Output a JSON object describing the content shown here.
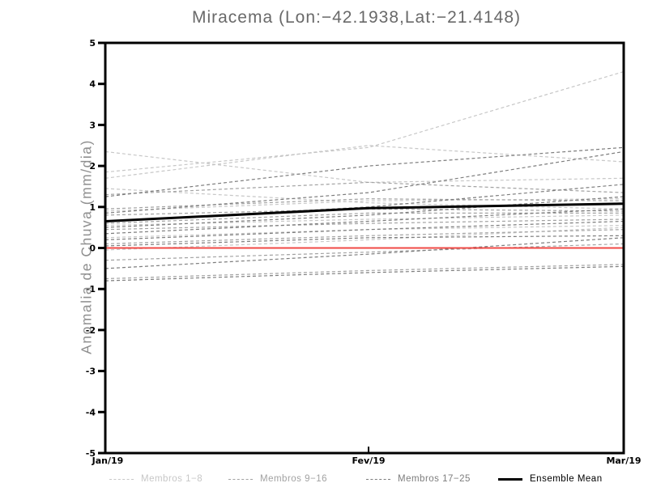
{
  "title": "Miracema (Lon:−42.1938,Lat:−21.4148)",
  "chart_data": {
    "type": "line",
    "title": "Miracema (Lon:−42.1938,Lat:−21.4148)",
    "xlabel": "",
    "ylabel": "Anomalia de Chuva (mm/dia)",
    "grid": false,
    "legend_position": "bottom",
    "x_axis": {
      "labels": [
        "Jan/19",
        "Fev/19",
        "Mar/19"
      ]
    },
    "y_axis": {
      "min": -5,
      "max": 5,
      "step": 1
    },
    "zero_line": {
      "value": 0,
      "color": "#f04945"
    },
    "series": [
      {
        "name": "Membros 1−8",
        "color": "#c7c7c7",
        "style": "dashed",
        "members": [
          [
            2.35,
            1.6,
            1.7
          ],
          [
            1.85,
            2.45,
            4.3
          ],
          [
            1.7,
            2.5,
            2.1
          ],
          [
            1.45,
            1.1,
            0.95
          ],
          [
            0.9,
            1.15,
            1.2
          ],
          [
            0.55,
            0.7,
            0.8
          ],
          [
            0.25,
            0.45,
            0.55
          ],
          [
            -0.05,
            0.2,
            0.5
          ]
        ]
      },
      {
        "name": "Membros 9−16",
        "color": "#a2a2a2",
        "style": "dashed",
        "members": [
          [
            1.3,
            1.6,
            1.35
          ],
          [
            0.95,
            1.2,
            1.15
          ],
          [
            0.8,
            0.95,
            0.9
          ],
          [
            0.6,
            0.85,
            0.85
          ],
          [
            0.45,
            0.6,
            0.7
          ],
          [
            0.1,
            0.3,
            0.45
          ],
          [
            -0.3,
            -0.1,
            0.1
          ],
          [
            -0.75,
            -0.55,
            -0.4
          ]
        ]
      },
      {
        "name": "Membros 17−25",
        "color": "#7d7d7d",
        "style": "dashed",
        "members": [
          [
            1.25,
            2.0,
            2.45
          ],
          [
            0.85,
            1.35,
            2.35
          ],
          [
            0.65,
            1.0,
            1.55
          ],
          [
            0.5,
            0.8,
            1.25
          ],
          [
            0.35,
            0.65,
            0.95
          ],
          [
            0.2,
            0.45,
            0.65
          ],
          [
            0.05,
            0.25,
            0.3
          ],
          [
            -0.5,
            -0.15,
            0.25
          ],
          [
            -0.8,
            -0.6,
            -0.45
          ]
        ]
      },
      {
        "name": "Ensemble Mean",
        "color": "#000000",
        "style": "solid",
        "members": [
          [
            0.65,
            0.97,
            1.08
          ]
        ]
      }
    ]
  },
  "legend": {
    "items": [
      {
        "label": "Membros 1−8",
        "color": "#c7c7c7",
        "style": "dashed"
      },
      {
        "label": "Membros 9−16",
        "color": "#a2a2a2",
        "style": "dashed"
      },
      {
        "label": "Membros 17−25",
        "color": "#7d7d7d",
        "style": "dashed"
      },
      {
        "label": "Ensemble Mean",
        "color": "#000000",
        "style": "solid"
      }
    ]
  }
}
